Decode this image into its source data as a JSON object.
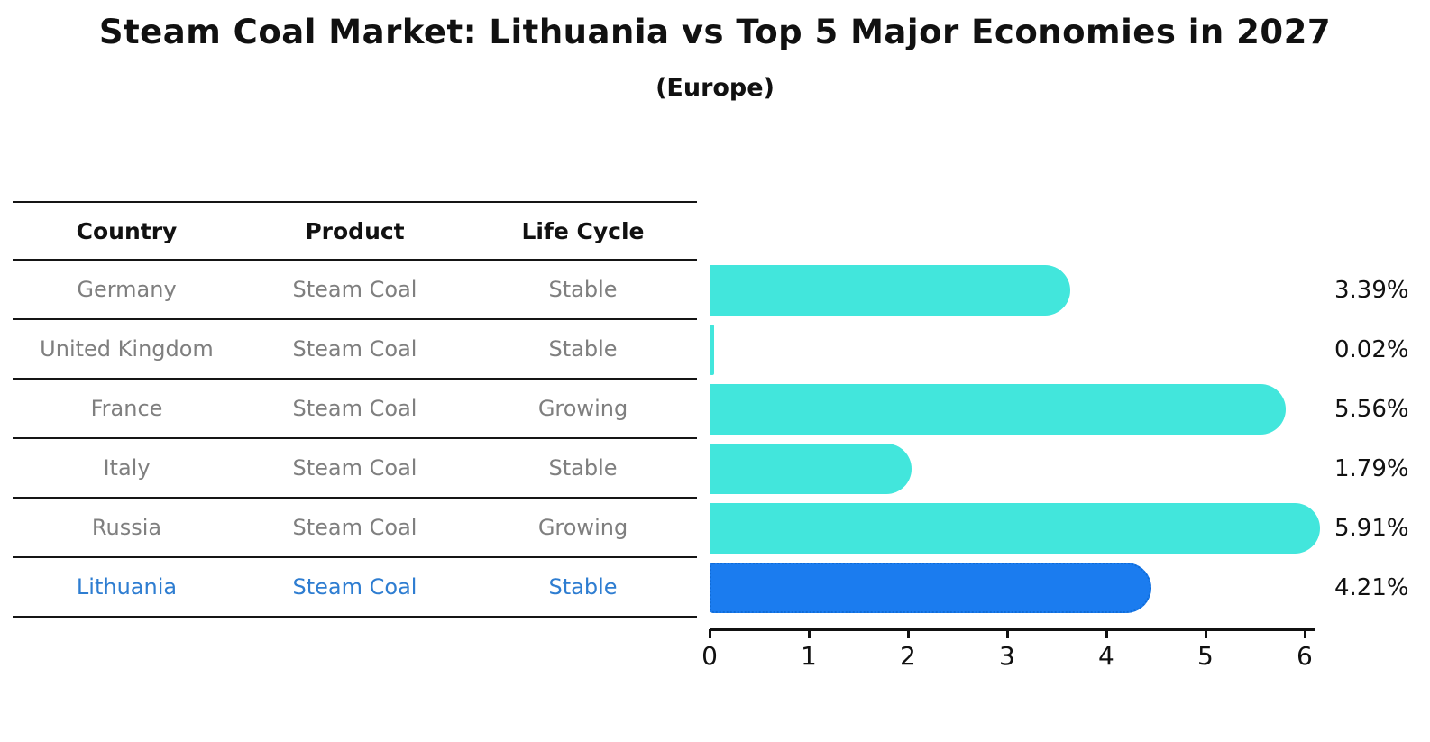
{
  "header": {
    "title": "Steam Coal Market: Lithuania vs Top 5 Major Economies in 2027",
    "subtitle": "(Europe)"
  },
  "table": {
    "headers": [
      "Country",
      "Product",
      "Life Cycle"
    ],
    "rows": [
      {
        "country": "Germany",
        "product": "Steam Coal",
        "life_cycle": "Stable",
        "highlighted": false
      },
      {
        "country": "United Kingdom",
        "product": "Steam Coal",
        "life_cycle": "Stable",
        "highlighted": false
      },
      {
        "country": "France",
        "product": "Steam Coal",
        "life_cycle": "Growing",
        "highlighted": false
      },
      {
        "country": "Italy",
        "product": "Steam Coal",
        "life_cycle": "Stable",
        "highlighted": false
      },
      {
        "country": "Russia",
        "product": "Steam Coal",
        "life_cycle": "Growing",
        "highlighted": false
      },
      {
        "country": "Lithuania",
        "product": "Steam Coal",
        "life_cycle": "Stable",
        "highlighted": true
      }
    ]
  },
  "chart_data": {
    "type": "bar",
    "orientation": "horizontal",
    "title": "Steam Coal Market: Lithuania vs Top 5 Major Economies in 2027",
    "subtitle": "(Europe)",
    "categories": [
      "Germany",
      "United Kingdom",
      "France",
      "Italy",
      "Russia",
      "Lithuania"
    ],
    "values": [
      3.39,
      0.02,
      5.56,
      1.79,
      5.91,
      4.21
    ],
    "value_labels": [
      "3.39%",
      "0.02%",
      "5.56%",
      "1.79%",
      "5.91%",
      "4.21%"
    ],
    "x_ticks": [
      0,
      1,
      2,
      3,
      4,
      5,
      6
    ],
    "xlim": [
      0,
      6.11
    ],
    "grid": false,
    "legend": "none",
    "bar_color": "#42E6DC",
    "highlight_color": "#1B7CEF",
    "highlight_border_color": "#0F6BD7",
    "highlight_text_color": "#2E7DD1",
    "table_text_color": "#7F7F7F",
    "axis_color": "#111111"
  }
}
